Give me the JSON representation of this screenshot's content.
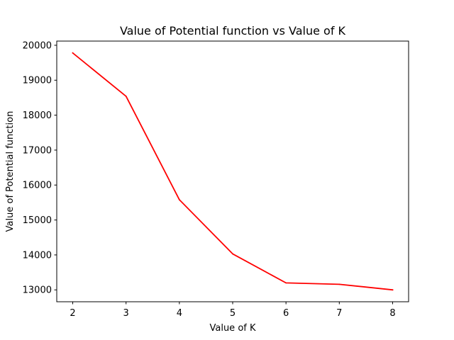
{
  "chart_data": {
    "type": "line",
    "title": "Value of Potential function vs Value of K",
    "xlabel": "Value of K",
    "ylabel": "Value of Potential function",
    "x": [
      2,
      3,
      4,
      5,
      6,
      7,
      8
    ],
    "series": [
      {
        "values": [
          19780,
          18540,
          15580,
          14030,
          13200,
          13160,
          13000
        ],
        "color": "#ff0000"
      }
    ],
    "xlim": [
      1.7,
      8.3
    ],
    "ylim": [
      12660,
      20120
    ],
    "xticks": [
      2,
      3,
      4,
      5,
      6,
      7,
      8
    ],
    "yticks": [
      13000,
      14000,
      15000,
      16000,
      17000,
      18000,
      19000,
      20000
    ],
    "xtick_labels": [
      "2",
      "3",
      "4",
      "5",
      "6",
      "7",
      "8"
    ],
    "ytick_labels": [
      "13000",
      "14000",
      "15000",
      "16000",
      "17000",
      "18000",
      "19000",
      "20000"
    ],
    "grid": false,
    "legend": "none"
  }
}
